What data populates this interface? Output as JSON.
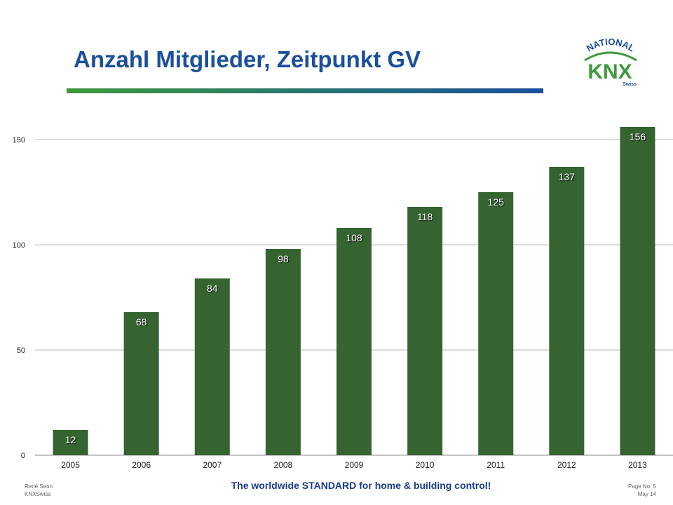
{
  "header": {
    "title": "Anzahl Mitglieder, Zeitpunkt GV"
  },
  "logo": {
    "top_text": "NATIONAL",
    "main_text": "KNX",
    "sub_text": "Swiss",
    "colors": {
      "green": "#3f9a3c",
      "blue": "#1a4f9c"
    }
  },
  "chart_data": {
    "type": "bar",
    "title": "",
    "xlabel": "",
    "ylabel": "",
    "categories": [
      "2005",
      "2006",
      "2007",
      "2008",
      "2009",
      "2010",
      "2011",
      "2012",
      "2013"
    ],
    "values": [
      12,
      68,
      84,
      98,
      108,
      118,
      125,
      137,
      156
    ],
    "ylim": [
      0,
      156
    ],
    "yticks": [
      0,
      50,
      100,
      150
    ],
    "grid": true,
    "legend": "none",
    "bar_color": "#356430",
    "data_labels": true
  },
  "footer": {
    "author": "René Senn",
    "organization": "KNXSwiss",
    "slogan": "The worldwide STANDARD for home & building control!",
    "page": "Page No. 5",
    "date": "May 14"
  }
}
